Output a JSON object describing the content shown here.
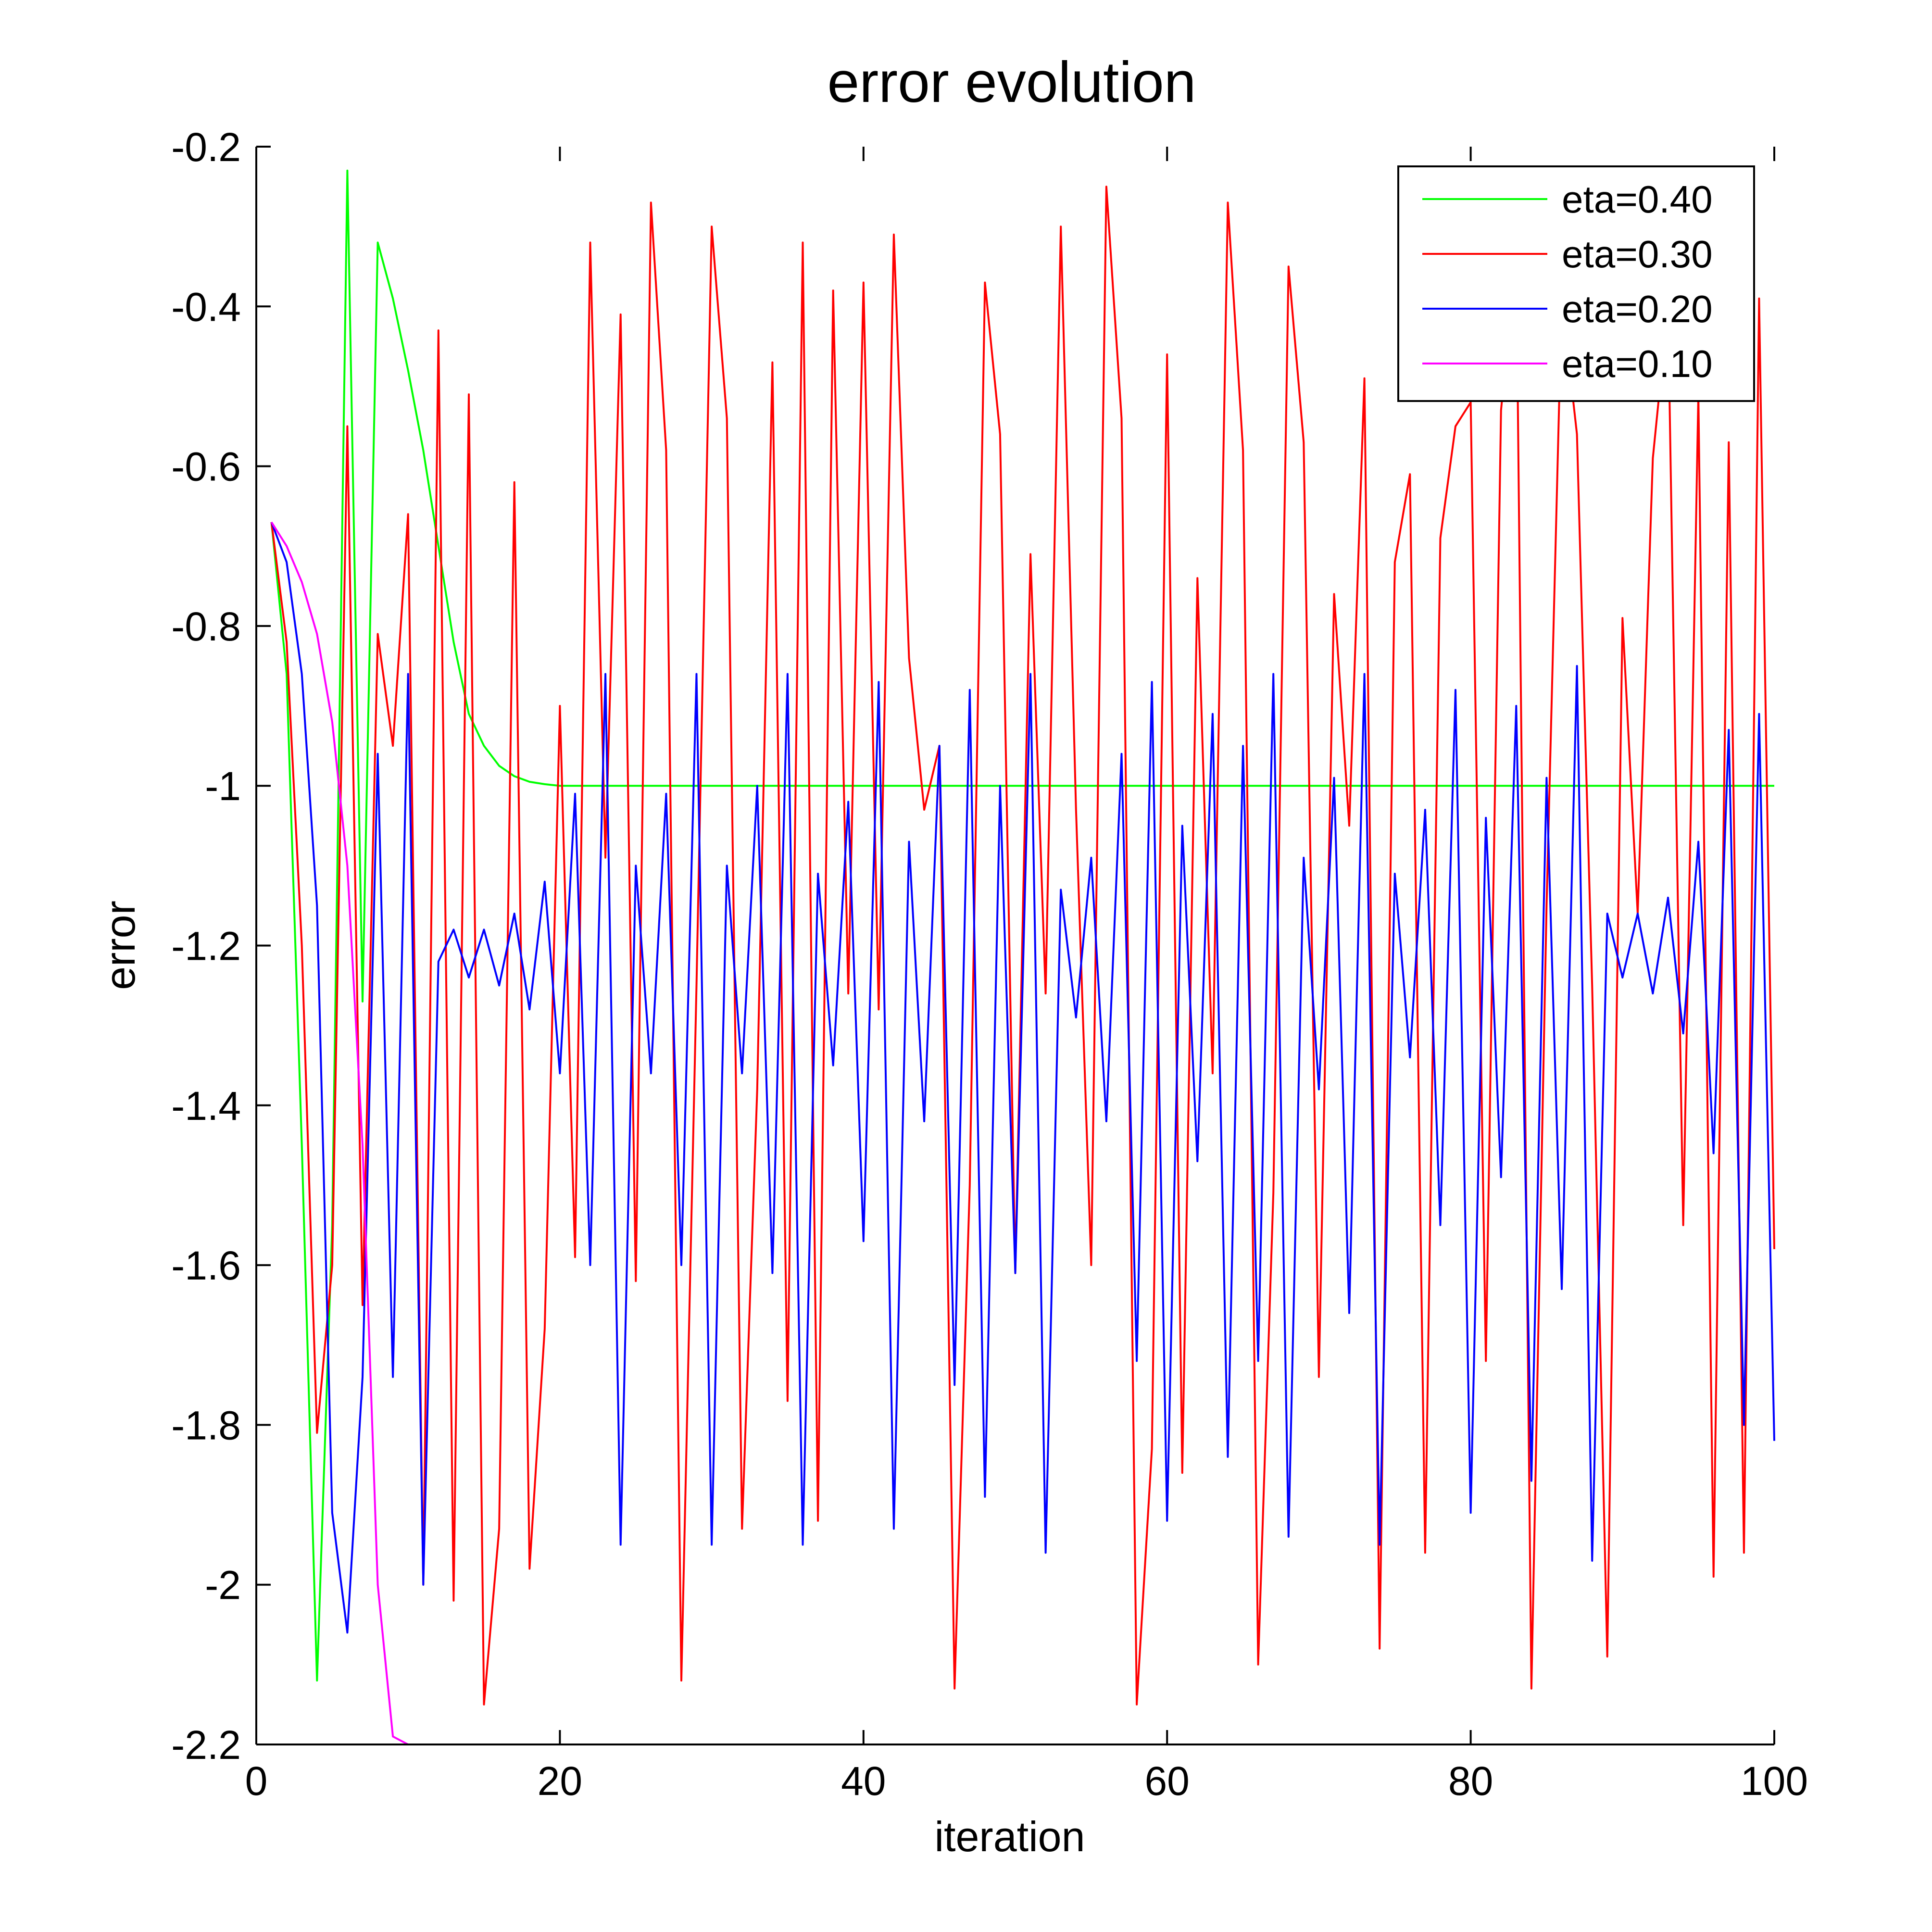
{
  "chart_data": {
    "type": "line",
    "title": "error evolution",
    "xlabel": "iteration",
    "ylabel": "error",
    "xlim": [
      0,
      100
    ],
    "ylim": [
      -2.2,
      -0.2
    ],
    "xticks": [
      0,
      20,
      40,
      60,
      80,
      100
    ],
    "xtick_labels": [
      "0",
      "20",
      "40",
      "60",
      "80",
      "100"
    ],
    "yticks": [
      -0.2,
      -0.4,
      -0.6,
      -0.8,
      -1,
      -1.2,
      -1.4,
      -1.6,
      -1.8,
      -2,
      -2.2
    ],
    "ytick_labels": [
      "-0.2",
      "-0.4",
      "-0.6",
      "-0.8",
      "-1",
      "-1.2",
      "-1.4",
      "-1.6",
      "-1.8",
      "-2",
      "-2.2"
    ],
    "grid": false,
    "legend_position": "top-right",
    "x": [
      1,
      2,
      3,
      4,
      5,
      6,
      7,
      8,
      9,
      10,
      11,
      12,
      13,
      14,
      15,
      16,
      17,
      18,
      19,
      20,
      21,
      22,
      23,
      24,
      25,
      26,
      27,
      28,
      29,
      30,
      31,
      32,
      33,
      34,
      35,
      36,
      37,
      38,
      39,
      40,
      41,
      42,
      43,
      44,
      45,
      46,
      47,
      48,
      49,
      50,
      51,
      52,
      53,
      54,
      55,
      56,
      57,
      58,
      59,
      60,
      61,
      62,
      63,
      64,
      65,
      66,
      67,
      68,
      69,
      70,
      71,
      72,
      73,
      74,
      75,
      76,
      77,
      78,
      79,
      80,
      81,
      82,
      83,
      84,
      85,
      86,
      87,
      88,
      89,
      90,
      91,
      92,
      93,
      94,
      95,
      96,
      97,
      98,
      99,
      100
    ],
    "series": [
      {
        "name": "eta=0.40",
        "color": "#00ff00",
        "values": [
          -0.67,
          -0.86,
          -1.45,
          -2.12,
          -1.55,
          -0.23,
          -1.27,
          -0.32,
          -0.39,
          -0.48,
          -0.58,
          -0.7,
          -0.82,
          -0.91,
          -0.95,
          -0.975,
          -0.988,
          -0.995,
          -0.998,
          -1.0,
          -1.0,
          -1.0,
          -1.0,
          -1.0,
          -1.0,
          -1.0,
          -1.0,
          -1.0,
          -1.0,
          -1.0,
          -1.0,
          -1.0,
          -1.0,
          -1.0,
          -1.0,
          -1.0,
          -1.0,
          -1.0,
          -1.0,
          -1.0,
          -1.0,
          -1.0,
          -1.0,
          -1.0,
          -1.0,
          -1.0,
          -1.0,
          -1.0,
          -1.0,
          -1.0,
          -1.0,
          -1.0,
          -1.0,
          -1.0,
          -1.0,
          -1.0,
          -1.0,
          -1.0,
          -1.0,
          -1.0,
          -1.0,
          -1.0,
          -1.0,
          -1.0,
          -1.0,
          -1.0,
          -1.0,
          -1.0,
          -1.0,
          -1.0,
          -1.0,
          -1.0,
          -1.0,
          -1.0,
          -1.0,
          -1.0,
          -1.0,
          -1.0,
          -1.0,
          -1.0,
          -1.0,
          -1.0,
          -1.0,
          -1.0,
          -1.0,
          -1.0,
          -1.0,
          -1.0,
          -1.0,
          -1.0,
          -1.0,
          -1.0,
          -1.0,
          -1.0,
          -1.0,
          -1.0,
          -1.0,
          -1.0,
          -1.0,
          -1.0
        ]
      },
      {
        "name": "eta=0.30",
        "color": "#ff0000",
        "values": [
          -0.67,
          -0.82,
          -1.2,
          -1.81,
          -1.6,
          -0.55,
          -1.65,
          -0.81,
          -0.95,
          -0.66,
          -2.0,
          -0.43,
          -2.02,
          -0.51,
          -2.15,
          -1.93,
          -0.62,
          -1.98,
          -1.68,
          -0.9,
          -1.59,
          -0.32,
          -1.09,
          -0.41,
          -1.62,
          -0.27,
          -0.58,
          -2.12,
          -1.25,
          -0.3,
          -0.54,
          -1.93,
          -1.38,
          -0.47,
          -1.77,
          -0.32,
          -1.92,
          -0.38,
          -1.26,
          -0.37,
          -1.28,
          -0.31,
          -0.84,
          -1.03,
          -0.95,
          -2.13,
          -1.5,
          -0.37,
          -0.56,
          -1.61,
          -0.71,
          -1.26,
          -0.3,
          -1.03,
          -1.6,
          -0.25,
          -0.54,
          -2.15,
          -1.83,
          -0.46,
          -1.86,
          -0.74,
          -1.36,
          -0.27,
          -0.58,
          -2.1,
          -1.51,
          -0.35,
          -0.57,
          -1.74,
          -0.76,
          -1.05,
          -0.49,
          -2.08,
          -0.72,
          -0.61,
          -1.96,
          -0.69,
          -0.55,
          -0.52,
          -1.72,
          -0.53,
          -0.33,
          -2.13,
          -1.15,
          -0.39,
          -0.56,
          -1.25,
          -2.09,
          -0.79,
          -1.16,
          -0.59,
          -0.4,
          -1.55,
          -0.51,
          -1.99,
          -0.57,
          -1.96,
          -0.39,
          -1.58
        ]
      },
      {
        "name": "eta=0.20",
        "color": "#0000ff",
        "values": [
          -0.67,
          -0.72,
          -0.86,
          -1.15,
          -1.91,
          -2.06,
          -1.74,
          -0.96,
          -1.74,
          -0.86,
          -2.0,
          -1.22,
          -1.18,
          -1.24,
          -1.18,
          -1.25,
          -1.16,
          -1.28,
          -1.12,
          -1.36,
          -1.01,
          -1.6,
          -0.86,
          -1.95,
          -1.1,
          -1.36,
          -1.01,
          -1.6,
          -0.86,
          -1.95,
          -1.1,
          -1.36,
          -1.0,
          -1.61,
          -0.86,
          -1.95,
          -1.11,
          -1.35,
          -1.02,
          -1.57,
          -0.87,
          -1.93,
          -1.07,
          -1.42,
          -0.95,
          -1.75,
          -0.88,
          -1.89,
          -1.0,
          -1.61,
          -0.86,
          -1.96,
          -1.13,
          -1.29,
          -1.09,
          -1.42,
          -0.96,
          -1.72,
          -0.87,
          -1.92,
          -1.05,
          -1.47,
          -0.91,
          -1.84,
          -0.95,
          -1.72,
          -0.86,
          -1.94,
          -1.09,
          -1.38,
          -0.99,
          -1.66,
          -0.86,
          -1.95,
          -1.11,
          -1.34,
          -1.03,
          -1.55,
          -0.88,
          -1.91,
          -1.04,
          -1.49,
          -0.9,
          -1.87,
          -0.99,
          -1.63,
          -0.85,
          -1.97,
          -1.16,
          -1.24,
          -1.16,
          -1.26,
          -1.14,
          -1.31,
          -1.07,
          -1.46,
          -0.93,
          -1.8,
          -0.91,
          -1.82
        ]
      },
      {
        "name": "eta=0.10",
        "color": "#ff00ff",
        "values": [
          -0.67,
          -0.7,
          -0.745,
          -0.81,
          -0.92,
          -1.1,
          -1.45,
          -2.0,
          -2.19,
          -2.2,
          -2.2,
          -2.2,
          -2.2,
          -2.2,
          -2.2,
          -2.2,
          -2.2,
          -2.2,
          -2.2,
          -2.2,
          -2.2,
          -2.2,
          -2.2,
          -2.2,
          -2.2,
          -2.2,
          -2.2,
          -2.2,
          -2.2,
          -2.2,
          -2.2,
          -2.2,
          -2.2,
          -2.2,
          -2.2,
          -2.2,
          -2.2,
          -2.2,
          -2.2,
          -2.2,
          -2.2,
          -2.2,
          -2.2,
          -2.2,
          -2.2,
          -2.2,
          -2.2,
          -2.2,
          -2.2,
          -2.2,
          -2.2,
          -2.2,
          -2.2,
          -2.2,
          -2.2,
          -2.2,
          -2.2,
          -2.2,
          -2.2,
          -2.2,
          -2.2,
          -2.2,
          -2.2,
          -2.2,
          -2.2,
          -2.2,
          -2.2,
          -2.2,
          -2.2,
          -2.2,
          -2.2,
          -2.2,
          -2.2,
          -2.2,
          -2.2,
          -2.2,
          -2.2,
          -2.2,
          -2.2,
          -2.2,
          -2.2,
          -2.2,
          -2.2,
          -2.2,
          -2.2,
          -2.2,
          -2.2,
          -2.2,
          -2.2,
          -2.2,
          -2.2,
          -2.2,
          -2.2,
          -2.2,
          -2.2,
          -2.2,
          -2.2,
          -2.2,
          -2.2,
          -2.2
        ]
      }
    ]
  }
}
